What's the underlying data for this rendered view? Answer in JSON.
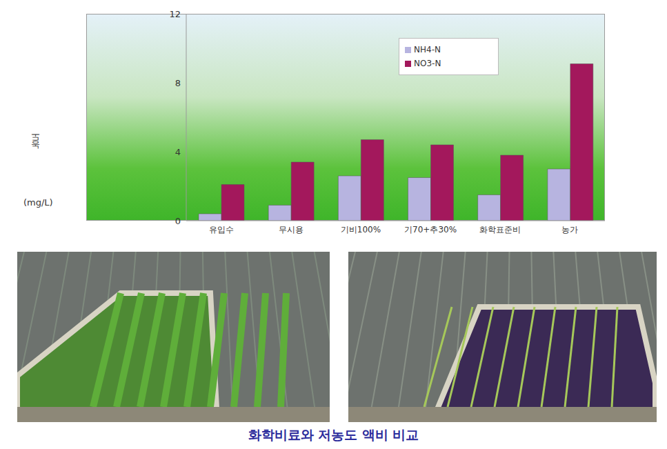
{
  "chart_data": {
    "type": "bar",
    "categories": [
      "유입수",
      "무시용",
      "기비100%",
      "기70+추30%",
      "화학표준비",
      "농가"
    ],
    "series": [
      {
        "name": "NH4-N",
        "color": "#b7b4e0",
        "values": [
          0.4,
          0.9,
          2.6,
          2.5,
          1.5,
          3.0
        ]
      },
      {
        "name": "NO3-N",
        "color": "#a3185c",
        "values": [
          2.1,
          3.4,
          4.7,
          4.4,
          3.8,
          9.1
        ]
      }
    ],
    "ylim": [
      0,
      12
    ],
    "yticks": [
      0,
      4,
      8,
      12
    ],
    "y_label": "농도",
    "y_unit": "(mg/L)",
    "grid": false,
    "legend": "upper right"
  },
  "caption": "화학비료와 저농도 액비 비교"
}
